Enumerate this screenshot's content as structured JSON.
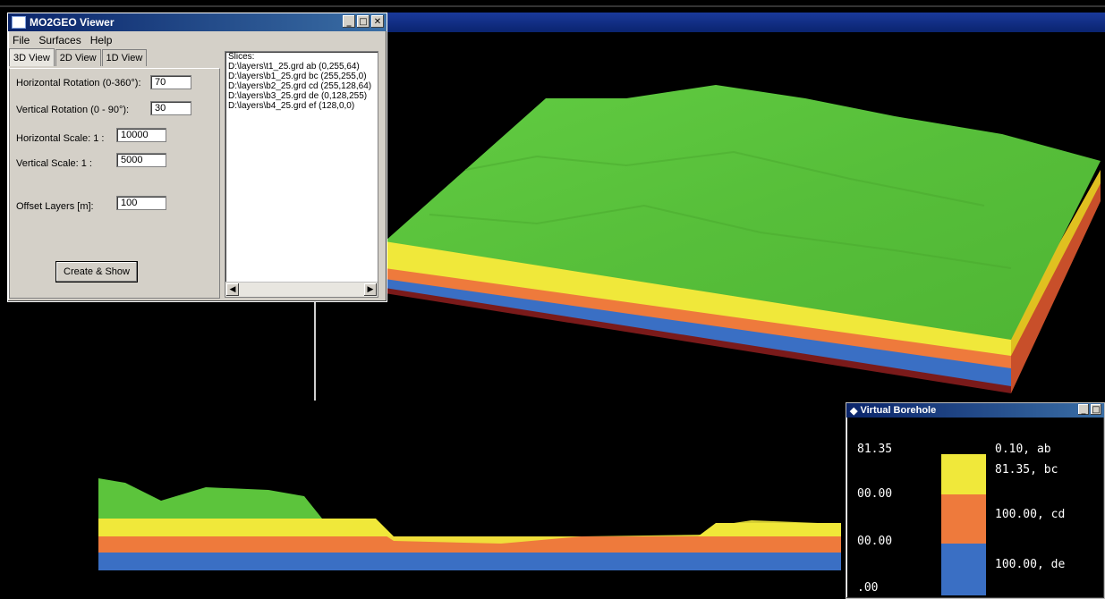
{
  "viewer": {
    "title": "MO2GEO Viewer",
    "menu": [
      "File",
      "Surfaces",
      "Help"
    ],
    "tabs": [
      "3D View",
      "2D View",
      "1D View"
    ],
    "fields": {
      "hrot_label": "Horizontal Rotation (0-360°):",
      "hrot_value": "70",
      "vrot_label": "Vertical Rotation (0 - 90°):",
      "vrot_value": "30",
      "hscale_label": "Horizontal Scale: 1 :",
      "hscale_value": "10000",
      "vscale_label": "Vertical Scale: 1 :",
      "vscale_value": "5000",
      "offset_label": "Offset Layers [m]:",
      "offset_value": "100"
    },
    "create_button": "Create & Show",
    "slices": [
      "Slices:",
      "D:\\layers\\t1_25.grd ab (0,255,64)",
      "D:\\layers\\b1_25.grd bc (255,255,0)",
      "D:\\layers\\b2_25.grd cd (255,128,64)",
      "D:\\layers\\b3_25.grd de (0,128,255)",
      "D:\\layers\\b4_25.grd ef (128,0,0)"
    ]
  },
  "borehole": {
    "title": "Virtual Borehole",
    "depth_labels": [
      "81.35",
      "00.00",
      "00.00",
      ".00"
    ],
    "layer_labels": [
      "0.10, ab",
      "81.35, bc",
      "100.00, cd",
      "100.00, de"
    ]
  },
  "colors": {
    "green": "#5cc43c",
    "yellow": "#f0e83a",
    "orange": "#ee7a3c",
    "blue": "#3a6fc4",
    "maroon": "#7a1a1a"
  }
}
